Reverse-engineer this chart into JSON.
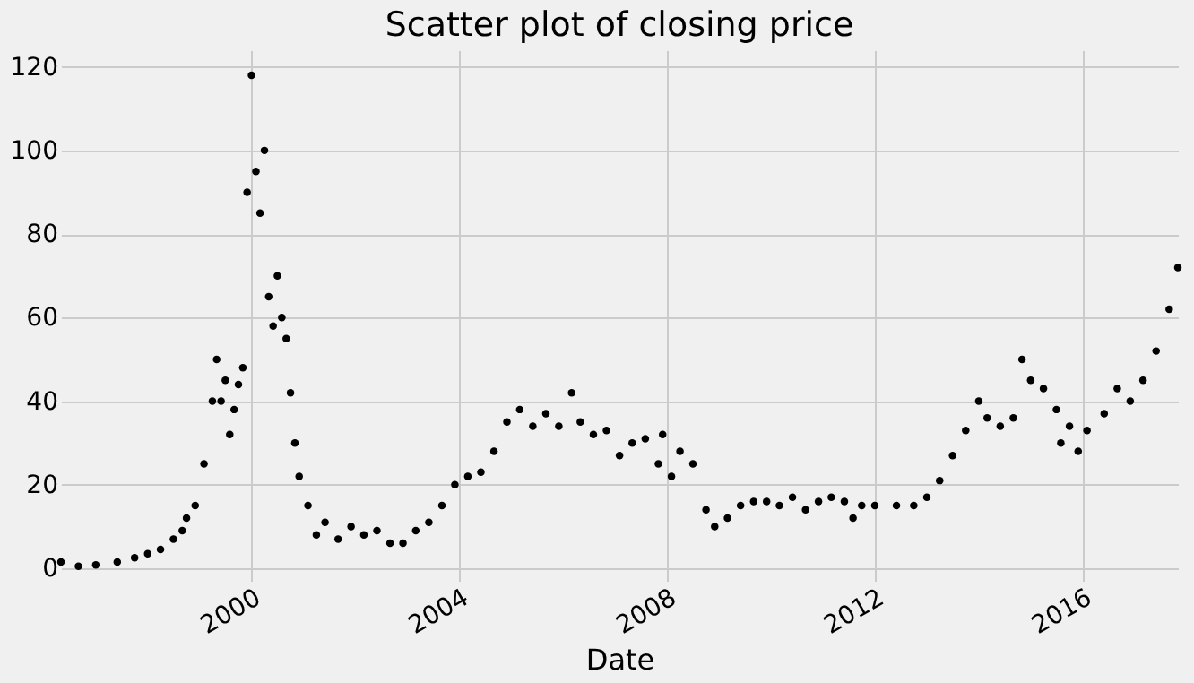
{
  "chart_data": {
    "type": "scatter",
    "title": "Scatter plot of closing price",
    "xlabel": "Date",
    "x": [
      "1996-05",
      "1996-09",
      "1997-01",
      "1997-06",
      "1997-10",
      "1998-01",
      "1998-04",
      "1998-07",
      "1998-09",
      "1998-10",
      "1998-12",
      "1999-02",
      "1999-04",
      "1999-05",
      "1999-06",
      "1999-07",
      "1999-08",
      "1999-09",
      "1999-10",
      "1999-11",
      "1999-12",
      "2000-01",
      "2000-02",
      "2000-03",
      "2000-04",
      "2000-05",
      "2000-06",
      "2000-07",
      "2000-08",
      "2000-09",
      "2000-10",
      "2000-11",
      "2000-12",
      "2001-02",
      "2001-04",
      "2001-06",
      "2001-09",
      "2001-12",
      "2002-03",
      "2002-06",
      "2002-09",
      "2002-12",
      "2003-03",
      "2003-06",
      "2003-09",
      "2003-12",
      "2004-03",
      "2004-06",
      "2004-09",
      "2004-12",
      "2005-03",
      "2005-06",
      "2005-09",
      "2005-12",
      "2006-03",
      "2006-05",
      "2006-08",
      "2006-11",
      "2007-02",
      "2007-05",
      "2007-08",
      "2007-11",
      "2007-12",
      "2008-02",
      "2008-04",
      "2008-07",
      "2008-10",
      "2008-12",
      "2009-03",
      "2009-06",
      "2009-09",
      "2009-12",
      "2010-03",
      "2010-06",
      "2010-09",
      "2010-12",
      "2011-03",
      "2011-06",
      "2011-08",
      "2011-10",
      "2012-01",
      "2012-06",
      "2012-10",
      "2013-01",
      "2013-04",
      "2013-07",
      "2013-10",
      "2014-01",
      "2014-03",
      "2014-06",
      "2014-09",
      "2014-11",
      "2015-01",
      "2015-04",
      "2015-07",
      "2015-08",
      "2015-10",
      "2015-12",
      "2016-02",
      "2016-06",
      "2016-09",
      "2016-12",
      "2017-03",
      "2017-06",
      "2017-09",
      "2017-11"
    ],
    "series": [
      {
        "color": "#000000",
        "values": [
          1.5,
          0.5,
          0.8,
          1.5,
          2.5,
          3.5,
          4.5,
          7,
          9,
          12,
          15,
          25,
          40,
          50,
          40,
          45,
          32,
          38,
          44,
          48,
          90,
          118,
          95,
          85,
          100,
          65,
          58,
          70,
          60,
          55,
          42,
          30,
          22,
          15,
          8,
          11,
          7,
          10,
          8,
          9,
          6,
          6,
          9,
          11,
          15,
          20,
          22,
          23,
          28,
          35,
          38,
          34,
          37,
          34,
          42,
          35,
          32,
          33,
          27,
          30,
          31,
          25,
          32,
          22,
          28,
          25,
          14,
          10,
          12,
          15,
          16,
          16,
          15,
          17,
          14,
          16,
          17,
          16,
          12,
          15,
          15,
          15,
          15,
          17,
          21,
          27,
          33,
          40,
          36,
          34,
          36,
          50,
          45,
          43,
          38,
          30,
          34,
          28,
          33,
          37,
          43,
          40,
          45,
          52,
          62,
          72
        ]
      }
    ],
    "xlim": [
      "1996-05",
      "2017-11"
    ],
    "xticks": [
      "2000",
      "2004",
      "2008",
      "2012",
      "2016"
    ],
    "ylim": [
      -3,
      124
    ],
    "yticks": [
      0,
      20,
      40,
      60,
      80,
      100,
      120
    ],
    "grid": true,
    "marker": "circle"
  }
}
